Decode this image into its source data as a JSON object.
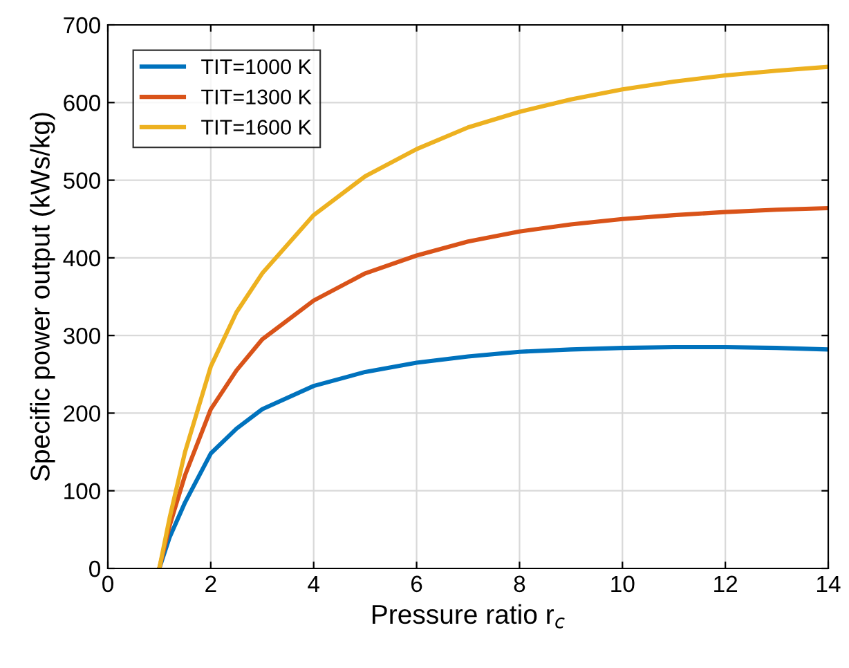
{
  "chart_data": {
    "type": "line",
    "xlabel": "Pressure ratio r$_{c}$",
    "ylabel": "Specific power output (kWs/kg)",
    "xlim": [
      0,
      14
    ],
    "ylim": [
      0,
      700
    ],
    "xticks": [
      0,
      2,
      4,
      6,
      8,
      10,
      12,
      14
    ],
    "yticks": [
      0,
      100,
      200,
      300,
      400,
      500,
      600,
      700
    ],
    "grid": true,
    "legend": "top left",
    "line_style": "solid",
    "series": [
      {
        "name": "TIT=1000 K",
        "color": "#0072bd",
        "x": [
          1,
          1.2,
          1.5,
          2,
          2.5,
          3,
          4,
          5,
          6,
          7,
          8,
          9,
          10,
          11,
          12,
          13,
          14
        ],
        "values": [
          0,
          40,
          85,
          148,
          180,
          205,
          235,
          253,
          265,
          273,
          279,
          282,
          284,
          285,
          285,
          284,
          282
        ]
      },
      {
        "name": "TIT=1300 K",
        "color": "#d95319",
        "x": [
          1,
          1.2,
          1.5,
          2,
          2.5,
          3,
          4,
          5,
          6,
          7,
          8,
          9,
          10,
          11,
          12,
          13,
          14
        ],
        "values": [
          0,
          55,
          120,
          205,
          255,
          295,
          345,
          380,
          403,
          421,
          434,
          443,
          450,
          455,
          459,
          462,
          464
        ]
      },
      {
        "name": "TIT=1600 K",
        "color": "#edb120",
        "x": [
          1,
          1.2,
          1.5,
          2,
          2.5,
          3,
          4,
          5,
          6,
          7,
          8,
          9,
          10,
          11,
          12,
          13,
          14
        ],
        "values": [
          0,
          65,
          150,
          260,
          330,
          380,
          455,
          505,
          540,
          568,
          588,
          604,
          617,
          627,
          635,
          641,
          646
        ]
      }
    ]
  }
}
